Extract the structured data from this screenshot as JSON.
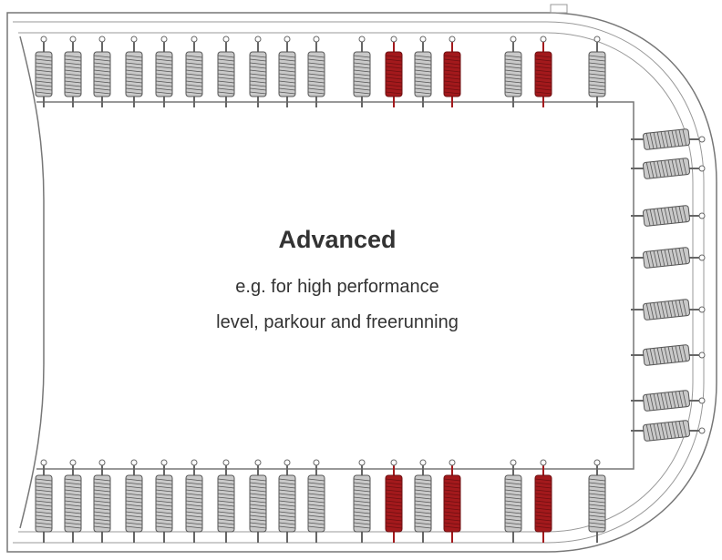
{
  "title": "Advanced",
  "description": [
    "e.g. for high performance",
    "level, parkour and freerunning"
  ]
}
